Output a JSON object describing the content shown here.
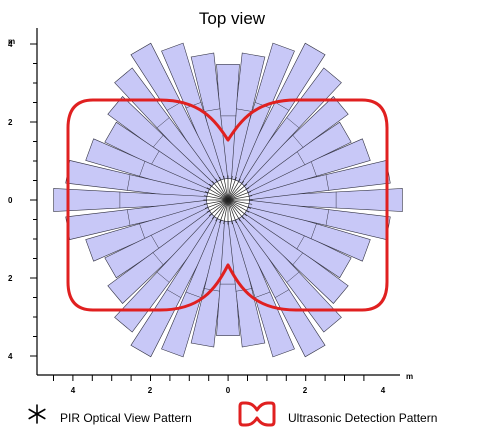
{
  "title": "Top view",
  "y_unit": "m",
  "x_unit": "m",
  "y_ticks": [
    "4",
    "2",
    "0",
    "2",
    "4"
  ],
  "x_ticks": [
    "4",
    "2",
    "0",
    "2",
    "4"
  ],
  "legend": {
    "pir_label": "PIR Optical View Pattern",
    "ultrasonic_label": "Ultrasonic Detection Pattern"
  },
  "colors": {
    "pir_fill": "#c8c8f7",
    "pir_stroke": "#333344",
    "ultrasonic": "#e02020",
    "axis": "#000000"
  },
  "icons": {
    "pir": "asterisk-icon",
    "ultrasonic": "heart-outline-icon"
  },
  "pir_pattern": {
    "beam_count": 36,
    "beam_angle_step_deg": 10,
    "beam_reach_m": [
      4.5,
      4.2,
      3.8,
      3.5,
      3.8,
      4.2,
      4.5,
      4.2,
      3.8,
      3.5,
      3.8,
      4.2,
      4.5,
      4.2,
      3.8,
      3.5,
      3.8,
      4.2,
      4.5,
      4.2,
      3.8,
      3.5,
      3.8,
      4.2,
      4.5,
      4.2,
      3.8,
      3.5,
      3.8,
      4.2,
      4.5,
      4.2,
      3.8,
      3.5,
      3.8,
      4.2
    ]
  }
}
